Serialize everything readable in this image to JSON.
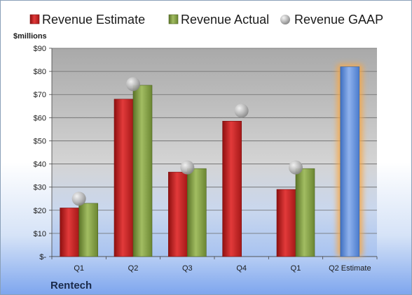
{
  "chart_data": {
    "type": "bar",
    "unit_label": "$millions",
    "company": "Rentech",
    "categories": [
      "Q1",
      "Q2",
      "Q3",
      "Q4",
      "Q1",
      "Q2 Estimate"
    ],
    "ylim": [
      0,
      90
    ],
    "yticks": [
      0,
      10,
      20,
      30,
      40,
      50,
      60,
      70,
      80,
      90
    ],
    "ytick_labels": [
      "$-",
      "$10",
      "$20",
      "$30",
      "$40",
      "$50",
      "$60",
      "$70",
      "$80",
      "$90"
    ],
    "grid": true,
    "legend_position": "top",
    "series": [
      {
        "name": "Revenue Estimate",
        "type": "bar",
        "color": "#d42a2a",
        "values": [
          21,
          68,
          36.5,
          58.5,
          29,
          null
        ]
      },
      {
        "name": "Revenue Actual",
        "type": "bar",
        "color": "#8aa64a",
        "values": [
          23,
          74,
          38,
          null,
          38,
          null
        ]
      },
      {
        "name": "Revenue GAAP",
        "type": "marker",
        "color": "#b0b0b0",
        "values": [
          25,
          74.5,
          38.5,
          63,
          38.5,
          null
        ]
      }
    ],
    "forecast": {
      "name": "Q2 Estimate",
      "category_index": 5,
      "value": 82,
      "color": "#6f9be0",
      "glow": "#f6a84a"
    }
  }
}
